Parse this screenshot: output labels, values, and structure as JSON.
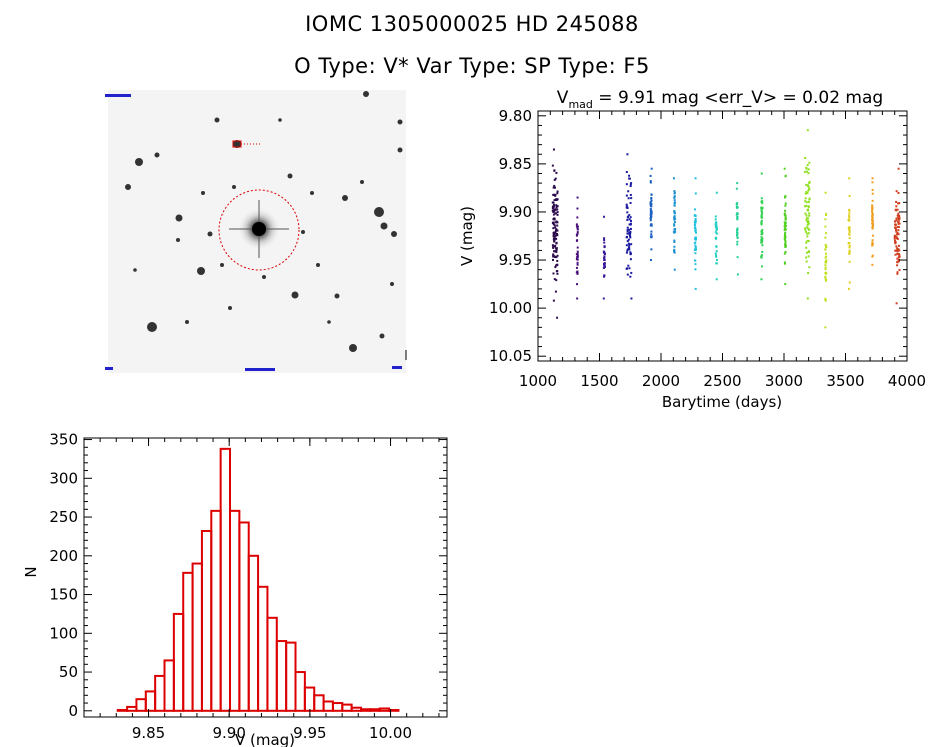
{
  "header": {
    "line1": "IOMC 1305000025    HD 245088",
    "line2": "O Type: V*   Var Type:    SP Type: F5"
  },
  "image_panel": {
    "description_label": "DSS image thumbnail"
  },
  "lightcurve": {
    "title_v": "V",
    "title_sub": "mad",
    "title_rest": " = 9.91 mag <err_V> = 0.02 mag",
    "xlabel": "Barytime (days)",
    "ylabel": "V (mag)"
  },
  "chart_data": [
    {
      "type": "scatter",
      "name": "light-curve",
      "title": "Vmad = 9.91 mag <err_V> = 0.02 mag",
      "xlabel": "Barytime (days)",
      "ylabel": "V (mag)",
      "xlim": [
        1000,
        4000
      ],
      "ylim": [
        10.055,
        9.795
      ],
      "xticks": [
        1000,
        1500,
        2000,
        2500,
        3000,
        3500,
        4000
      ],
      "yticks": [
        9.8,
        9.85,
        9.9,
        9.95,
        10.0,
        10.05
      ],
      "ytick_labels": [
        "9.80",
        "9.85",
        "9.90",
        "9.95",
        "10.00",
        "10.05"
      ],
      "series": [
        {
          "x": 1140,
          "ymin": 9.835,
          "ymax": 10.01,
          "color": "#2b0a4a",
          "n": 120
        },
        {
          "x": 1320,
          "ymin": 9.885,
          "ymax": 9.99,
          "color": "#4a0f7a",
          "n": 35
        },
        {
          "x": 1540,
          "ymin": 9.905,
          "ymax": 9.99,
          "color": "#3a1a9a",
          "n": 30
        },
        {
          "x": 1740,
          "ymin": 9.84,
          "ymax": 9.99,
          "color": "#1a1aa0",
          "n": 70
        },
        {
          "x": 1920,
          "ymin": 9.855,
          "ymax": 9.95,
          "color": "#1a60c0",
          "n": 40
        },
        {
          "x": 2110,
          "ymin": 9.865,
          "ymax": 9.96,
          "color": "#1a90d0",
          "n": 40
        },
        {
          "x": 2280,
          "ymin": 9.865,
          "ymax": 9.98,
          "color": "#20c0e0",
          "n": 45
        },
        {
          "x": 2450,
          "ymin": 9.88,
          "ymax": 9.97,
          "color": "#20d0c0",
          "n": 30
        },
        {
          "x": 2620,
          "ymin": 9.87,
          "ymax": 9.965,
          "color": "#20d090",
          "n": 30
        },
        {
          "x": 2820,
          "ymin": 9.86,
          "ymax": 9.97,
          "color": "#30d050",
          "n": 50
        },
        {
          "x": 3010,
          "ymin": 9.855,
          "ymax": 9.975,
          "color": "#50d020",
          "n": 55
        },
        {
          "x": 3190,
          "ymin": 9.815,
          "ymax": 9.99,
          "color": "#90e020",
          "n": 70
        },
        {
          "x": 3340,
          "ymin": 9.88,
          "ymax": 10.02,
          "color": "#c0e020",
          "n": 35
        },
        {
          "x": 3530,
          "ymin": 9.865,
          "ymax": 9.98,
          "color": "#e0d020",
          "n": 35
        },
        {
          "x": 3720,
          "ymin": 9.865,
          "ymax": 9.955,
          "color": "#f0a020",
          "n": 40
        },
        {
          "x": 3920,
          "ymin": 9.855,
          "ymax": 9.995,
          "color": "#d04020",
          "n": 80
        }
      ]
    },
    {
      "type": "bar",
      "name": "histogram",
      "title": "",
      "xlabel": "V (mag)",
      "ylabel": "N",
      "xlim": [
        9.81,
        10.035
      ],
      "ylim": [
        -8,
        352
      ],
      "xticks": [
        9.85,
        9.9,
        9.95,
        10.0
      ],
      "xtick_labels": [
        "9.85",
        "9.90",
        "9.95",
        "10.00"
      ],
      "yticks": [
        0,
        50,
        100,
        150,
        200,
        250,
        300,
        350
      ],
      "bin_width": 0.0058,
      "bin_start": 9.8135,
      "values": [
        0,
        0,
        0,
        1,
        5,
        15,
        25,
        45,
        65,
        125,
        178,
        190,
        232,
        258,
        338,
        258,
        243,
        200,
        160,
        120,
        90,
        88,
        50,
        30,
        20,
        12,
        10,
        8,
        4,
        2,
        2,
        3,
        1,
        0
      ]
    }
  ]
}
